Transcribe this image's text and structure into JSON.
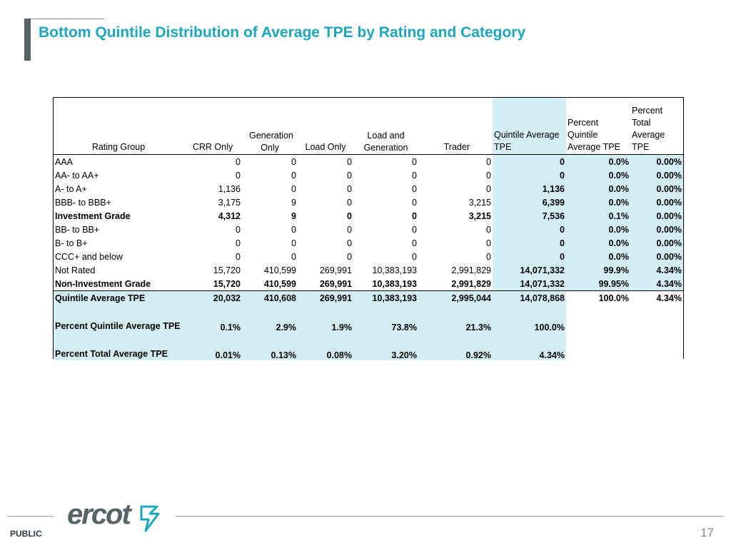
{
  "title": "Bottom Quintile Distribution of Average TPE by Rating and Category",
  "table": {
    "headers": [
      "Rating Group",
      "CRR Only",
      "Generation Only",
      "Load Only",
      "Load and Generation",
      "Trader",
      "Quintile Average TPE",
      "Percent Quintile Average TPE",
      "Percent Total Average TPE"
    ],
    "rows": [
      {
        "label": "AAA",
        "values": [
          "0",
          "0",
          "0",
          "0",
          "0",
          "0",
          "0.0%",
          "0.00%"
        ]
      },
      {
        "label": "AA- to AA+",
        "values": [
          "0",
          "0",
          "0",
          "0",
          "0",
          "0",
          "0.0%",
          "0.00%"
        ]
      },
      {
        "label": "A- to A+",
        "values": [
          "1,136",
          "0",
          "0",
          "0",
          "0",
          "1,136",
          "0.0%",
          "0.00%"
        ]
      },
      {
        "label": "BBB- to BBB+",
        "values": [
          "3,175",
          "9",
          "0",
          "0",
          "3,215",
          "6,399",
          "0.0%",
          "0.00%"
        ]
      },
      {
        "label": "Investment Grade",
        "values": [
          "4,312",
          "9",
          "0",
          "0",
          "3,215",
          "7,536",
          "0.1%",
          "0.00%"
        ]
      },
      {
        "label": "BB- to BB+",
        "values": [
          "0",
          "0",
          "0",
          "0",
          "0",
          "0",
          "0.0%",
          "0.00%"
        ]
      },
      {
        "label": "B- to B+",
        "values": [
          "0",
          "0",
          "0",
          "0",
          "0",
          "0",
          "0.0%",
          "0.00%"
        ]
      },
      {
        "label": "CCC+ and below",
        "values": [
          "0",
          "0",
          "0",
          "0",
          "0",
          "0",
          "0.0%",
          "0.00%"
        ]
      },
      {
        "label": "Not Rated",
        "values": [
          "15,720",
          "410,599",
          "269,991",
          "10,383,193",
          "2,991,829",
          "14,071,332",
          "99.9%",
          "4.34%"
        ]
      },
      {
        "label": "Non-Investment Grade",
        "values": [
          "15,720",
          "410,599",
          "269,991",
          "10,383,193",
          "2,991,829",
          "14,071,332",
          "99.95%",
          "4.34%"
        ]
      },
      {
        "label": "Quintile  Average TPE",
        "values": [
          "20,032",
          "410,608",
          "269,991",
          "10,383,193",
          "2,995,044",
          "14,078,868",
          "100.0%",
          "4.34%"
        ]
      },
      {
        "label": "Percent Quintile Average TPE",
        "values": [
          "0.1%",
          "2.9%",
          "1.9%",
          "73.8%",
          "21.3%",
          "100.0%"
        ]
      },
      {
        "label": "Percent Total Average TPE",
        "values": [
          "0.01%",
          "0.13%",
          "0.08%",
          "3.20%",
          "0.92%",
          "4.34%"
        ]
      }
    ]
  },
  "footer": {
    "classification": "PUBLIC",
    "logo_text": "ercot",
    "page_number": "17"
  },
  "colors": {
    "title": "#1ca6bf",
    "highlight": "#d4eef5",
    "accent_bar": "#566467"
  }
}
